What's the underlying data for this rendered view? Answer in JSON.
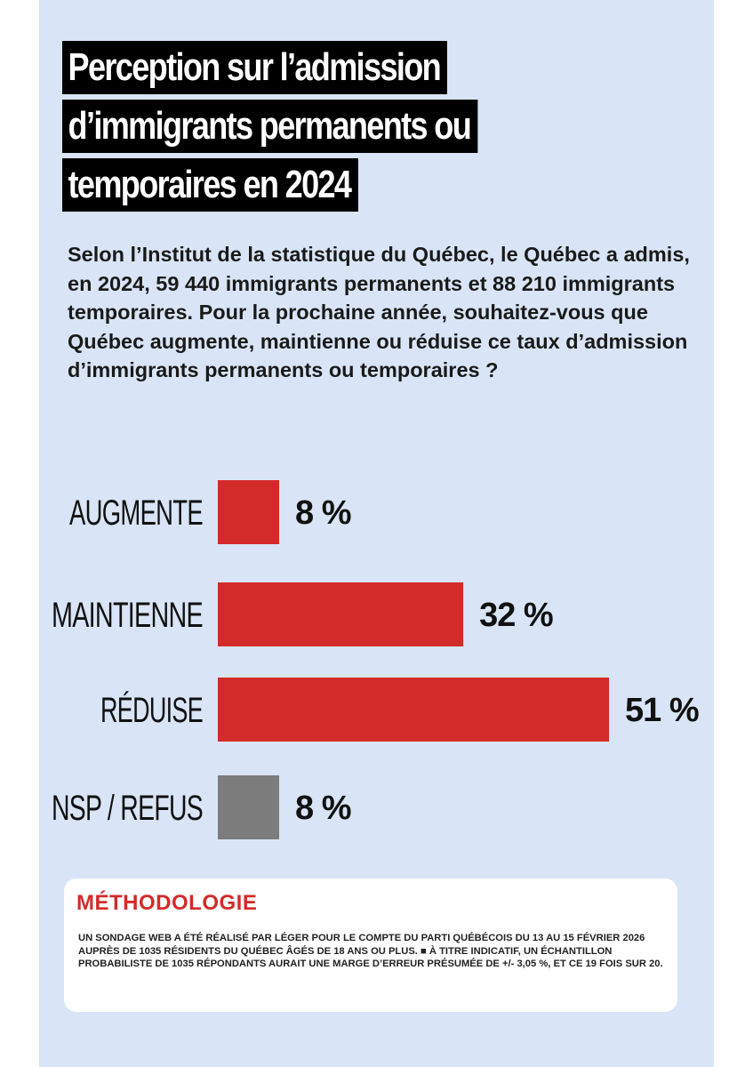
{
  "header": {
    "title_lines": [
      "Perception sur l’admission",
      "d’immigrants permanents ou",
      "temporaires en 2024"
    ],
    "question": "Selon l’Institut de la statistique du Québec, le Québec a admis, en 2024, 59 440 immigrants permanents et 88 210 immigrants temporaires. Pour la prochaine année, souhaitez-vous que Québec augmente, maintienne ou réduise ce taux d’admission d’immigrants permanents ou temporaires ?"
  },
  "chart_data": {
    "type": "bar",
    "orientation": "horizontal",
    "title": "Perception sur l’admission d’immigrants permanents ou temporaires en 2024",
    "categories": [
      "AUGMENTE",
      "MAINTIENNE",
      "RÉDUISE",
      "NSP / REFUS"
    ],
    "values": [
      8,
      32,
      51,
      8
    ],
    "value_labels": [
      "8 %",
      "32 %",
      "51 %",
      "8 %"
    ],
    "colors": [
      "#d32b29",
      "#d32b29",
      "#d32b29",
      "#7c7c7c"
    ],
    "unit": "%",
    "xlabel": "",
    "ylabel": "",
    "xlim": [
      0,
      51
    ],
    "grid": false
  },
  "methodology": {
    "title": "MÉTHODOLOGIE",
    "text": "Un sondage web a été réalisé par Léger pour le compte du Parti Québécois du 13 au 15 février 2026 auprès de 1035 résidents du Québec âgés de 18 ans ou plus. ■ À titre indicatif, un échantillon probabiliste de 1035 répondants aurait une marge d’erreur présumée de +/- 3,05 %, et ce 19 fois sur 20."
  },
  "colors": {
    "background": "#d9e5f6",
    "accent": "#d32b29",
    "neutral_bar": "#7c7c7c",
    "title_bg": "#000000"
  }
}
